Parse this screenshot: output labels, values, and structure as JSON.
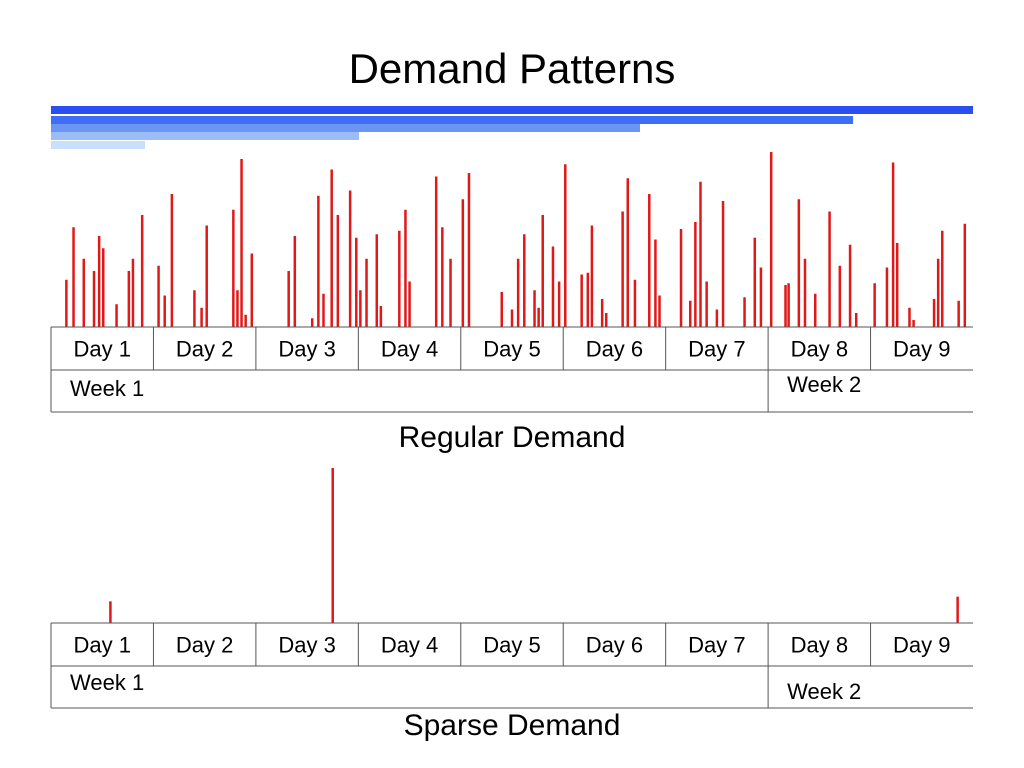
{
  "title": "Demand Patterns",
  "colors": {
    "bar": "#e01818",
    "stripes": [
      "#2a4ff0",
      "#3d6ef5",
      "#6a96f2",
      "#9cbcf5",
      "#c8e0fb"
    ],
    "grid": "#555555"
  },
  "chart_data": [
    {
      "type": "bar",
      "title": "Regular Demand",
      "categories": [
        "Day 1",
        "Day 2",
        "Day 3",
        "Day 4",
        "Day 5",
        "Day 6",
        "Day 7",
        "Day 8",
        "Day 9"
      ],
      "groups": [
        {
          "label": "Week 1",
          "days": 7
        },
        {
          "label": "Week 2",
          "days": 2
        }
      ],
      "ylim": [
        0,
        100
      ],
      "points": [
        {
          "x": 0.15,
          "y": 27
        },
        {
          "x": 0.22,
          "y": 57
        },
        {
          "x": 0.32,
          "y": 39
        },
        {
          "x": 0.42,
          "y": 32
        },
        {
          "x": 0.47,
          "y": 52
        },
        {
          "x": 0.51,
          "y": 45
        },
        {
          "x": 0.64,
          "y": 13
        },
        {
          "x": 0.76,
          "y": 32
        },
        {
          "x": 0.8,
          "y": 39
        },
        {
          "x": 0.89,
          "y": 64
        },
        {
          "x": 1.05,
          "y": 35
        },
        {
          "x": 1.11,
          "y": 18
        },
        {
          "x": 1.18,
          "y": 76
        },
        {
          "x": 1.4,
          "y": 21
        },
        {
          "x": 1.47,
          "y": 11
        },
        {
          "x": 1.52,
          "y": 58
        },
        {
          "x": 1.78,
          "y": 67
        },
        {
          "x": 1.82,
          "y": 21
        },
        {
          "x": 1.86,
          "y": 96
        },
        {
          "x": 1.9,
          "y": 7
        },
        {
          "x": 1.96,
          "y": 42
        },
        {
          "x": 2.32,
          "y": 32
        },
        {
          "x": 2.38,
          "y": 52
        },
        {
          "x": 2.55,
          "y": 5
        },
        {
          "x": 2.61,
          "y": 75
        },
        {
          "x": 2.66,
          "y": 19
        },
        {
          "x": 2.74,
          "y": 90
        },
        {
          "x": 2.8,
          "y": 64
        },
        {
          "x": 2.92,
          "y": 78
        },
        {
          "x": 2.98,
          "y": 51
        },
        {
          "x": 3.02,
          "y": 21
        },
        {
          "x": 3.08,
          "y": 39
        },
        {
          "x": 3.18,
          "y": 53
        },
        {
          "x": 3.22,
          "y": 12
        },
        {
          "x": 3.4,
          "y": 55
        },
        {
          "x": 3.46,
          "y": 67
        },
        {
          "x": 3.5,
          "y": 26
        },
        {
          "x": 3.76,
          "y": 86
        },
        {
          "x": 3.82,
          "y": 57
        },
        {
          "x": 3.9,
          "y": 39
        },
        {
          "x": 4.02,
          "y": 73
        },
        {
          "x": 4.08,
          "y": 88
        },
        {
          "x": 4.4,
          "y": 20
        },
        {
          "x": 4.5,
          "y": 10
        },
        {
          "x": 4.56,
          "y": 39
        },
        {
          "x": 4.62,
          "y": 53
        },
        {
          "x": 4.72,
          "y": 21
        },
        {
          "x": 4.76,
          "y": 11
        },
        {
          "x": 4.8,
          "y": 64
        },
        {
          "x": 4.9,
          "y": 46
        },
        {
          "x": 4.96,
          "y": 26
        },
        {
          "x": 5.02,
          "y": 93
        },
        {
          "x": 5.18,
          "y": 30
        },
        {
          "x": 5.24,
          "y": 31
        },
        {
          "x": 5.28,
          "y": 58
        },
        {
          "x": 5.38,
          "y": 16
        },
        {
          "x": 5.42,
          "y": 8
        },
        {
          "x": 5.58,
          "y": 66
        },
        {
          "x": 5.63,
          "y": 85
        },
        {
          "x": 5.7,
          "y": 27
        },
        {
          "x": 5.84,
          "y": 76
        },
        {
          "x": 5.9,
          "y": 50
        },
        {
          "x": 5.94,
          "y": 18
        },
        {
          "x": 6.15,
          "y": 56
        },
        {
          "x": 6.24,
          "y": 15
        },
        {
          "x": 6.29,
          "y": 60
        },
        {
          "x": 6.34,
          "y": 83
        },
        {
          "x": 6.4,
          "y": 26
        },
        {
          "x": 6.5,
          "y": 10
        },
        {
          "x": 6.56,
          "y": 72
        },
        {
          "x": 6.77,
          "y": 17
        },
        {
          "x": 6.87,
          "y": 51
        },
        {
          "x": 6.93,
          "y": 34
        },
        {
          "x": 7.03,
          "y": 100
        },
        {
          "x": 7.17,
          "y": 24
        },
        {
          "x": 7.2,
          "y": 25
        },
        {
          "x": 7.3,
          "y": 73
        },
        {
          "x": 7.36,
          "y": 39
        },
        {
          "x": 7.46,
          "y": 19
        },
        {
          "x": 7.6,
          "y": 66
        },
        {
          "x": 7.7,
          "y": 35
        },
        {
          "x": 7.8,
          "y": 47
        },
        {
          "x": 7.86,
          "y": 8
        },
        {
          "x": 8.04,
          "y": 25
        },
        {
          "x": 8.16,
          "y": 34
        },
        {
          "x": 8.22,
          "y": 94
        },
        {
          "x": 8.26,
          "y": 48
        },
        {
          "x": 8.38,
          "y": 11
        },
        {
          "x": 8.42,
          "y": 4
        },
        {
          "x": 8.62,
          "y": 16
        },
        {
          "x": 8.66,
          "y": 39
        },
        {
          "x": 8.7,
          "y": 55
        },
        {
          "x": 8.86,
          "y": 15
        },
        {
          "x": 8.92,
          "y": 59
        }
      ]
    },
    {
      "type": "bar",
      "title": "Sparse Demand",
      "categories": [
        "Day 1",
        "Day 2",
        "Day 3",
        "Day 4",
        "Day 5",
        "Day 6",
        "Day 7",
        "Day 8",
        "Day 9"
      ],
      "groups": [
        {
          "label": "Week 1",
          "days": 7
        },
        {
          "label": "Week 2",
          "days": 2
        }
      ],
      "ylim": [
        0,
        100
      ],
      "points": [
        {
          "x": 0.58,
          "y": 14
        },
        {
          "x": 2.75,
          "y": 100
        },
        {
          "x": 8.85,
          "y": 17
        }
      ]
    }
  ]
}
